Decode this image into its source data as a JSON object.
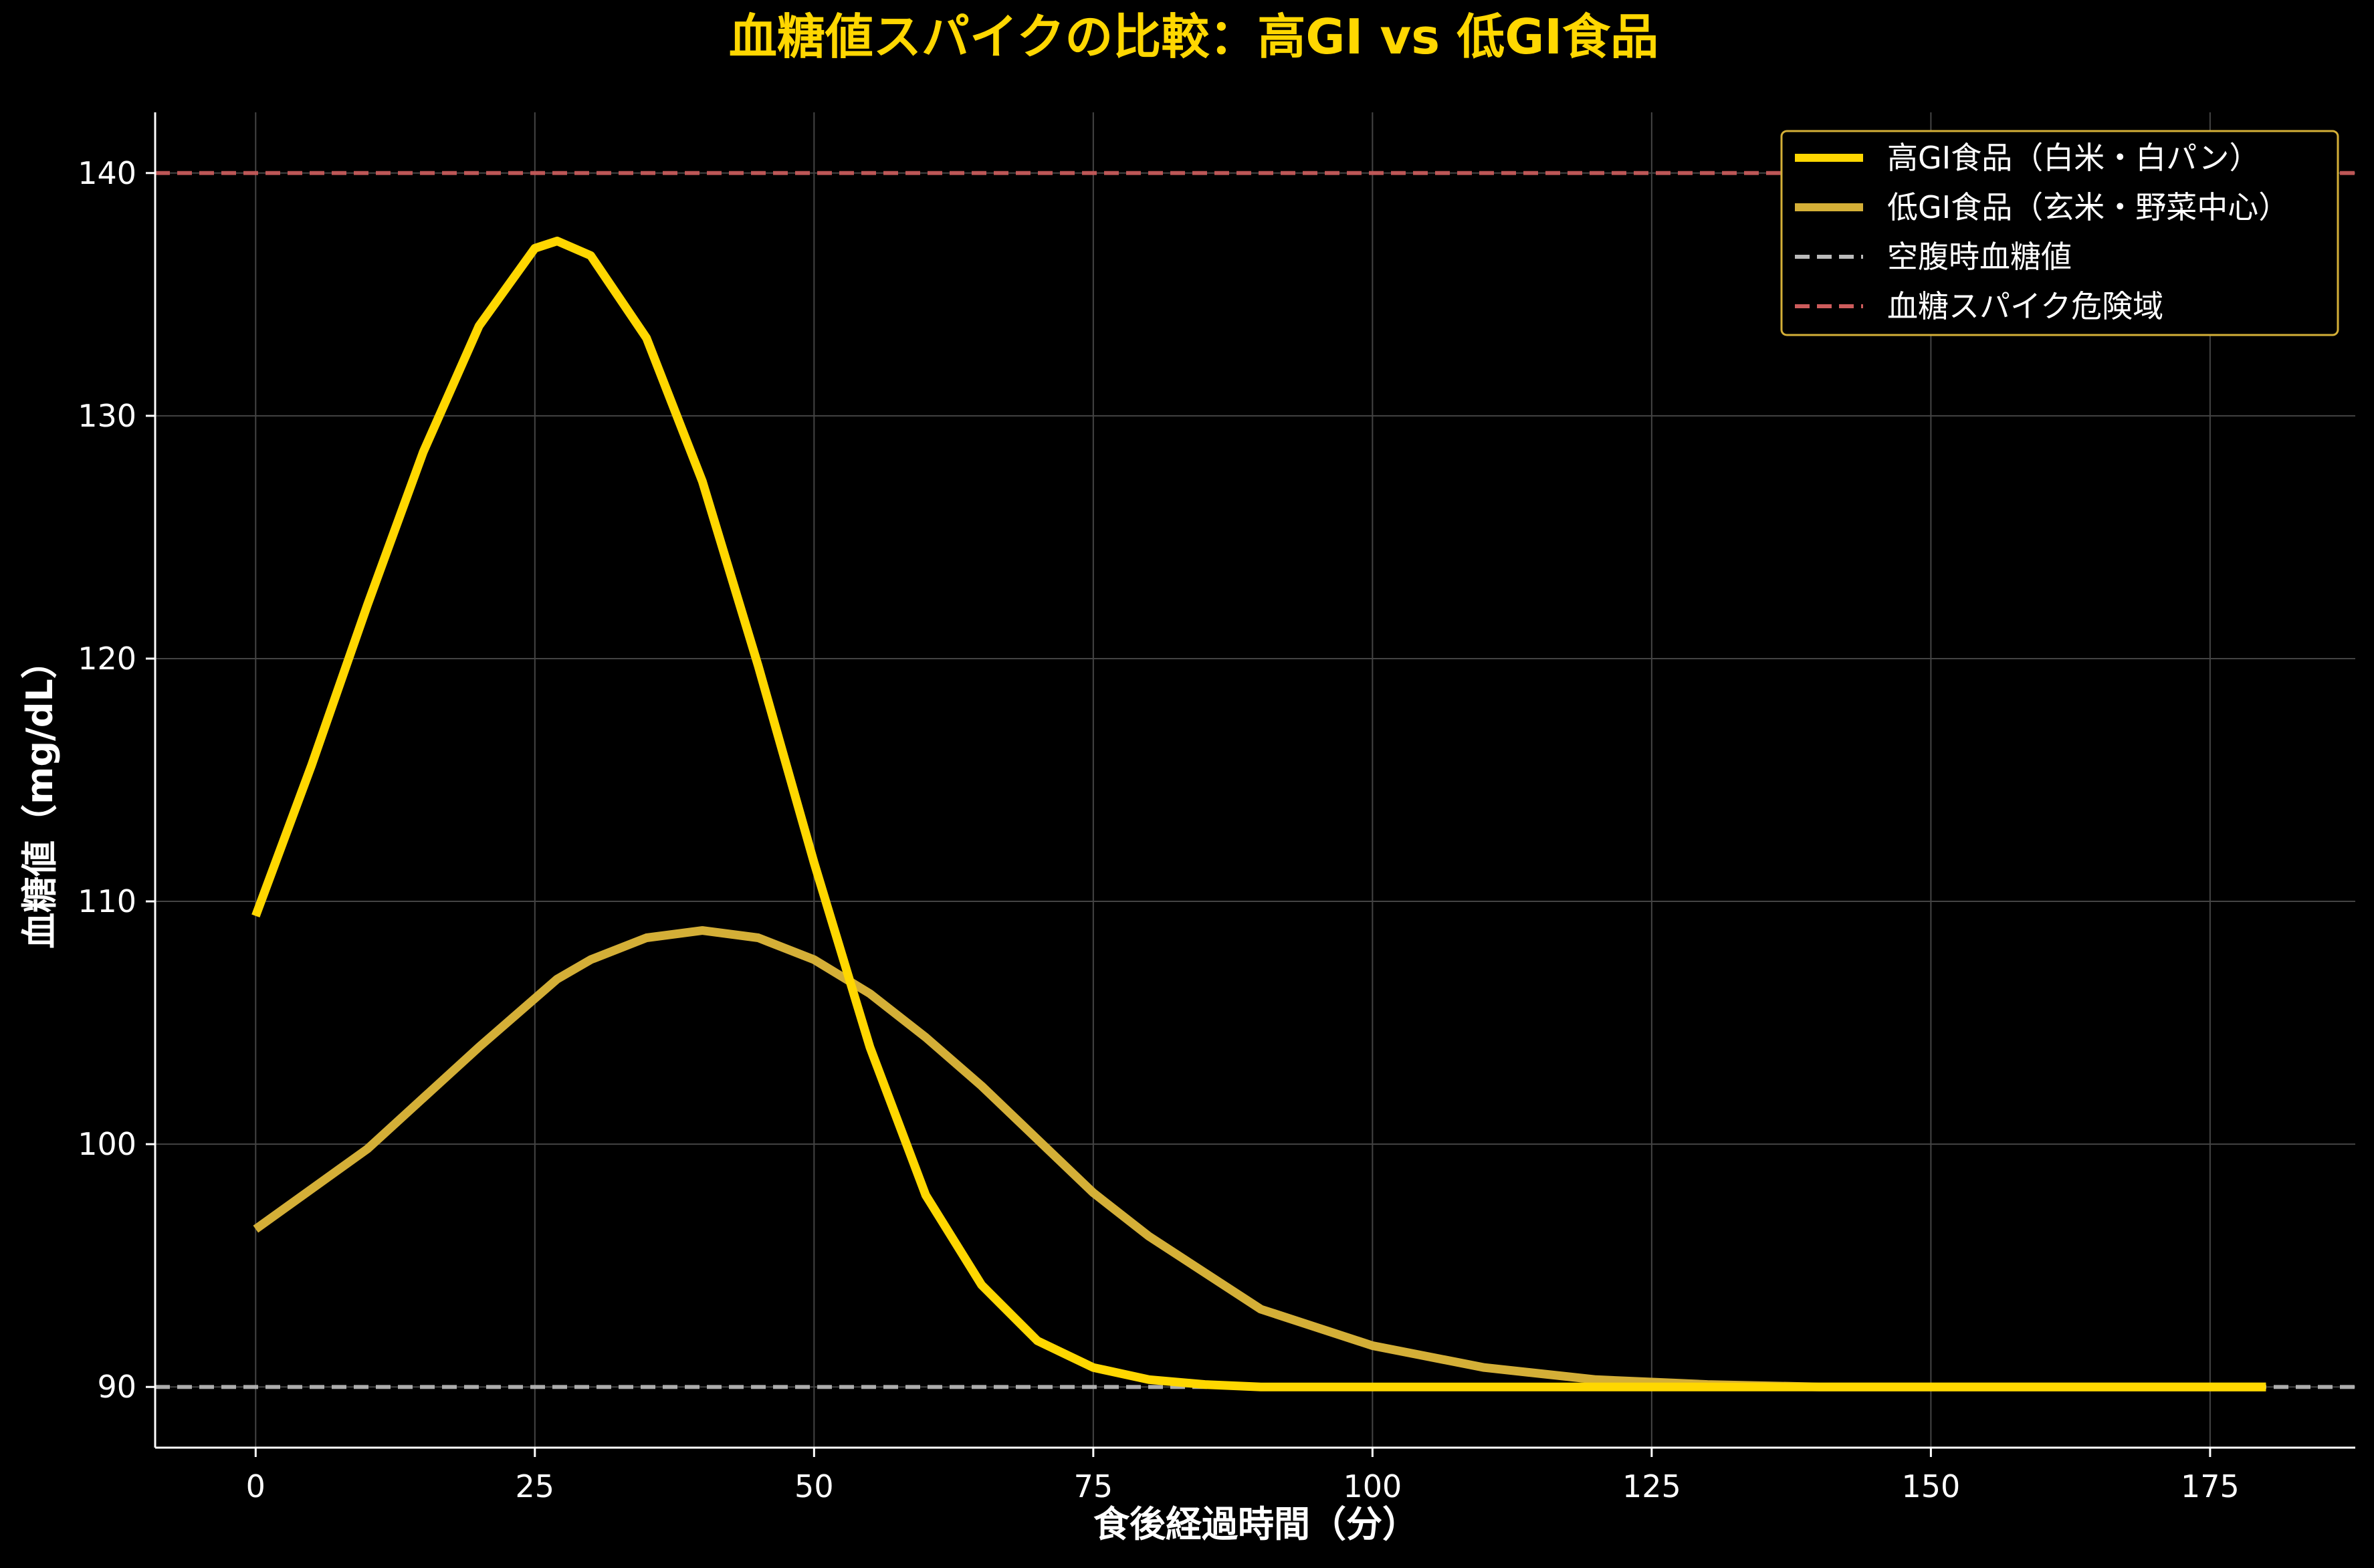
{
  "chart_data": {
    "type": "line",
    "title": "血糖値スパイクの比較：高GI vs 低GI食品",
    "xlabel": "食後経過時間（分）",
    "ylabel": "血糖値（mg/dL）",
    "xlim": [
      -9,
      188
    ],
    "ylim": [
      87.5,
      142.5
    ],
    "xticks": [
      0,
      25,
      50,
      75,
      100,
      125,
      150,
      175
    ],
    "yticks": [
      90,
      100,
      110,
      120,
      130,
      140
    ],
    "grid": true,
    "legend_position": "top-right",
    "series": [
      {
        "name": "高GI食品（白米・白パン）",
        "color": "#FFD700",
        "style": "solid",
        "x": [
          0,
          5,
          10,
          15,
          20,
          25,
          27,
          30,
          35,
          40,
          45,
          50,
          55,
          60,
          65,
          70,
          75,
          80,
          85,
          90,
          100,
          110,
          120,
          130,
          140,
          150,
          160,
          170,
          180
        ],
        "y": [
          109.4,
          115.6,
          122.2,
          128.5,
          133.7,
          136.9,
          137.2,
          136.6,
          133.2,
          127.3,
          119.7,
          111.6,
          104.0,
          97.9,
          94.2,
          91.9,
          90.8,
          90.3,
          90.1,
          90.0,
          90.0,
          90.0,
          90.0,
          90.0,
          90.0,
          90.0,
          90.0,
          90.0,
          90.0
        ]
      },
      {
        "name": "低GI食品（玄米・野菜中心）",
        "color": "#D4AF37",
        "style": "solid",
        "x": [
          0,
          10,
          20,
          27,
          30,
          35,
          40,
          45,
          50,
          55,
          60,
          65,
          70,
          75,
          80,
          90,
          100,
          110,
          120,
          130,
          140,
          150,
          160,
          170,
          180
        ],
        "y": [
          96.5,
          99.8,
          104.0,
          106.8,
          107.6,
          108.5,
          108.8,
          108.5,
          107.6,
          106.2,
          104.4,
          102.4,
          100.2,
          98.0,
          96.2,
          93.2,
          91.7,
          90.8,
          90.3,
          90.1,
          90.0,
          90.0,
          90.0,
          90.0,
          90.0
        ]
      }
    ],
    "reference_lines": [
      {
        "name": "空腹時血糖値",
        "y": 90,
        "color": "#BBBBBB",
        "style": "dashed"
      },
      {
        "name": "血糖スパイク危険域",
        "y": 140,
        "color": "#CD5C5C",
        "style": "dashed"
      }
    ]
  },
  "colors": {
    "background": "#000000",
    "title": "#FFD700",
    "text": "#FFFFFF",
    "grid": "#444444",
    "legend_border": "#D4AF37"
  }
}
